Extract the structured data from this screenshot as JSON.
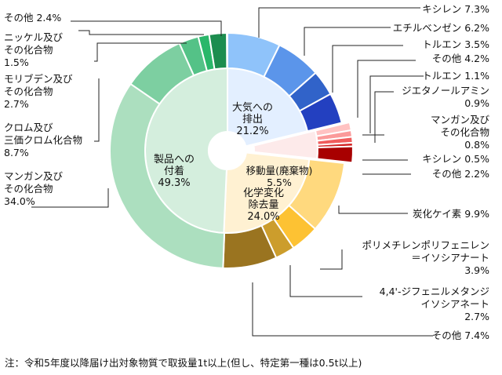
{
  "chart_data": {
    "type": "pie",
    "inner": [
      {
        "id": "air",
        "label": [
          "大気への",
          "排出"
        ],
        "pct": "21.2%",
        "value": 21.2,
        "color": "#e3efff"
      },
      {
        "id": "transfer",
        "label": [
          "移動量(廃棄物)"
        ],
        "pct": "5.5%",
        "value": 5.5,
        "color": "#fdeaea"
      },
      {
        "id": "chem",
        "label": [
          "化学変化",
          "除去量"
        ],
        "pct": "24.0%",
        "value": 24.0,
        "color": "#fff1d2"
      },
      {
        "id": "product",
        "label": [
          "製品への",
          "付着"
        ],
        "pct": "49.3%",
        "value": 49.3,
        "color": "#d4eedd"
      }
    ],
    "outer": [
      {
        "group": "air",
        "label": [
          "キシレン 7.3%"
        ],
        "value": 7.3,
        "color": "#8fc3fa"
      },
      {
        "group": "air",
        "label": [
          "エチルベンゼン 6.2%"
        ],
        "value": 6.2,
        "color": "#5b95ea"
      },
      {
        "group": "air",
        "label": [
          "トルエン 3.5%"
        ],
        "value": 3.5,
        "color": "#3163c9"
      },
      {
        "group": "air",
        "label": [
          "その他 4.2%"
        ],
        "value": 4.2,
        "color": "#2340c0"
      },
      {
        "group": "transfer",
        "label": [
          "トルエン 1.1%"
        ],
        "value": 1.1,
        "color": "#ffc2c2"
      },
      {
        "group": "transfer",
        "label": [
          "ジエタノールアミン",
          "0.9%"
        ],
        "value": 0.9,
        "color": "#fb9a9a"
      },
      {
        "group": "transfer",
        "label": [
          "マンガン及び",
          "その化合物",
          "0.8%"
        ],
        "value": 0.8,
        "color": "#f05c5c"
      },
      {
        "group": "transfer",
        "label": [
          "キシレン 0.5%"
        ],
        "value": 0.5,
        "color": "#d22424"
      },
      {
        "group": "transfer",
        "label": [
          "その他 2.2%"
        ],
        "value": 2.2,
        "color": "#a80000"
      },
      {
        "group": "chem",
        "label": [
          "炭化ケイ素 9.9%"
        ],
        "value": 9.9,
        "color": "#ffd97e"
      },
      {
        "group": "chem",
        "label": [
          "ポリメチレンポリフェニレン",
          "＝イソシアナート",
          "3.9%"
        ],
        "value": 3.9,
        "color": "#fdc233"
      },
      {
        "group": "chem",
        "label": [
          "4,4'-ジフェニルメタンジ",
          "イソシアネート",
          "2.7%"
        ],
        "value": 2.7,
        "color": "#cc9d2c"
      },
      {
        "group": "chem",
        "label": [
          "その他 7.4%"
        ],
        "value": 7.4,
        "color": "#9a7420"
      },
      {
        "group": "product",
        "label": [
          "マンガン及び",
          "その化合物",
          "34.0%"
        ],
        "value": 34.0,
        "color": "#acdfbf"
      },
      {
        "group": "product",
        "label": [
          "クロム及び",
          "三価クロム化合物",
          "8.7%"
        ],
        "value": 8.7,
        "color": "#7dcfa1"
      },
      {
        "group": "product",
        "label": [
          "モリブデン及び",
          "その化合物",
          "2.7%"
        ],
        "value": 2.7,
        "color": "#54c287"
      },
      {
        "group": "product",
        "label": [
          "ニッケル及び",
          "その化合物",
          "1.5%"
        ],
        "value": 1.5,
        "color": "#2ab76a"
      },
      {
        "group": "product",
        "label": [
          "その他 2.4%"
        ],
        "value": 2.4,
        "color": "#1c8d4f"
      }
    ]
  },
  "note": "注：令和5年度以降届け出対象物質で取扱量1t以上(但し、特定第一種は0.5t以上)"
}
